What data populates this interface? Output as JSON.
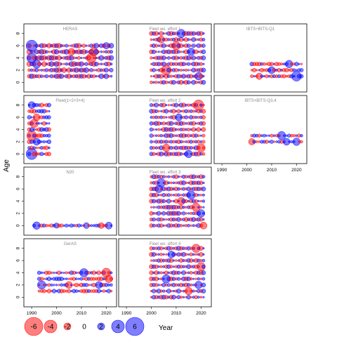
{
  "chart_data": {
    "type": "scatter",
    "title": "",
    "xlabel": "Year",
    "ylabel": "Age",
    "xlim": [
      1988,
      2023
    ],
    "ylim": [
      -1,
      9
    ],
    "x_ticks": [
      1990,
      2000,
      2010,
      2020
    ],
    "y_ticks": [
      0,
      2,
      4,
      6,
      8
    ],
    "colors": {
      "positive": "#0000FF",
      "negative": "#FF0000"
    },
    "legend": {
      "placement": "bottom-left",
      "entries": [
        {
          "label": "-6",
          "value": -6
        },
        {
          "label": "-4",
          "value": -4
        },
        {
          "label": "-2",
          "value": -2
        },
        {
          "label": "0",
          "value": 0
        },
        {
          "label": "2",
          "value": 2
        },
        {
          "label": "4",
          "value": 4
        },
        {
          "label": "6",
          "value": 6
        }
      ]
    },
    "panels": [
      {
        "title": "HERAS",
        "years": [
          1989,
          2022
        ],
        "ages": [
          1,
          6
        ],
        "pattern": "alt",
        "amp": 1.9,
        "strength": 0.6,
        "big": [
          [
            1990,
            6,
            3.5
          ],
          [
            1990,
            4,
            3.0
          ],
          [
            1992,
            3,
            2.5
          ],
          [
            2014,
            4,
            -3.0
          ],
          [
            2015,
            5,
            -2.5
          ],
          [
            2020,
            6,
            1.8
          ],
          [
            2006,
            5,
            -2.0
          ]
        ]
      },
      {
        "title": "Fleet wo. effort 1",
        "years": [
          2000,
          2021
        ],
        "ages": [
          0,
          8
        ],
        "pattern": "alt",
        "amp": 1.5,
        "strength": 0.6,
        "big": [
          [
            2006,
            2,
            -3.0
          ],
          [
            2012,
            8,
            2.5
          ],
          [
            2016,
            5,
            2.2
          ],
          [
            2019,
            1,
            2.2
          ],
          [
            2010,
            6,
            -2.5
          ],
          [
            2004,
            7,
            -2.0
          ]
        ]
      },
      {
        "title": "IBTS+BITS-Q1",
        "years": [
          2002,
          2022
        ],
        "ages": [
          1,
          3
        ],
        "pattern": "mixed",
        "amp": 1.5,
        "strength": 0.5,
        "big": [
          [
            2020,
            1,
            3.0
          ],
          [
            2017,
            3,
            2.2
          ],
          [
            2010,
            2,
            2.0
          ],
          [
            2005,
            1,
            -1.8
          ]
        ]
      },
      {
        "title": "Fleet(1+2+3+4)",
        "years": [
          1989,
          1997
        ],
        "ages": [
          0,
          8
        ],
        "pattern": "mixed",
        "amp": 1.7,
        "strength": 0.5,
        "big": [
          [
            1990,
            0,
            3.5
          ],
          [
            1990,
            3,
            -3.0
          ],
          [
            1991,
            5,
            -2.5
          ],
          [
            1990,
            8,
            2.0
          ],
          [
            1992,
            6,
            -2.0
          ],
          [
            1992,
            2,
            2.0
          ]
        ]
      },
      {
        "title": "Fleet wo. effort 2",
        "years": [
          2000,
          2021
        ],
        "ages": [
          0,
          8
        ],
        "pattern": "alt",
        "amp": 1.5,
        "strength": 0.6,
        "big": [
          [
            2019,
            8,
            -3.2
          ],
          [
            2020,
            1,
            -2.5
          ],
          [
            2011,
            6,
            2.0
          ],
          [
            2006,
            1,
            -2.2
          ],
          [
            2015,
            0,
            2.2
          ]
        ]
      },
      {
        "title": "IBTS+BITS-Q3,4",
        "years": [
          2002,
          2022
        ],
        "ages": [
          2,
          3
        ],
        "pattern": "mixed",
        "amp": 1.3,
        "strength": 0.5,
        "big": [
          [
            2014,
            3,
            2.5
          ],
          [
            2020,
            2,
            2.2
          ],
          [
            2002,
            2,
            -1.8
          ],
          [
            2016,
            2,
            2.0
          ]
        ]
      },
      {
        "title": "N20",
        "years": [
          1991,
          2022
        ],
        "ages": [
          0,
          0
        ],
        "pattern": "mixed",
        "amp": 1.3,
        "strength": 0.5,
        "big": [
          [
            1992,
            0,
            2.2
          ],
          [
            2021,
            0,
            2.0
          ],
          [
            2012,
            0,
            1.6
          ],
          [
            2018,
            0,
            -1.6
          ],
          [
            2000,
            0,
            1.4
          ]
        ]
      },
      {
        "title": "Fleet wo. effort 3",
        "years": [
          2000,
          2021
        ],
        "ages": [
          0,
          8
        ],
        "pattern": "alt",
        "amp": 1.5,
        "strength": 0.6,
        "big": [
          [
            2004,
            7,
            2.5
          ],
          [
            2016,
            5,
            2.5
          ],
          [
            2018,
            3,
            -2.5
          ],
          [
            2021,
            0,
            -2.0
          ],
          [
            2003,
            6,
            2.2
          ],
          [
            2012,
            4,
            -2.2
          ],
          [
            2020,
            2,
            2.2
          ]
        ]
      },
      {
        "title": "GerAS",
        "years": [
          1993,
          2022
        ],
        "ages": [
          1,
          4
        ],
        "pattern": "mixed",
        "amp": 1.6,
        "strength": 0.5,
        "big": [
          [
            1994,
            2,
            2.5
          ],
          [
            2011,
            4,
            2.5
          ],
          [
            2020,
            4,
            -2.8
          ],
          [
            2021,
            3,
            -2.2
          ],
          [
            2017,
            2,
            2.0
          ],
          [
            2005,
            2,
            -2.0
          ]
        ]
      },
      {
        "title": "Fleet wo. effort 4",
        "years": [
          2000,
          2021
        ],
        "ages": [
          0,
          8
        ],
        "pattern": "alt",
        "amp": 1.5,
        "strength": 0.6,
        "big": [
          [
            2018,
            8,
            -2.5
          ],
          [
            2020,
            5,
            -2.5
          ],
          [
            2006,
            3,
            2.5
          ],
          [
            2019,
            2,
            2.2
          ],
          [
            2015,
            1,
            -2.2
          ],
          [
            2008,
            7,
            2.0
          ]
        ]
      }
    ]
  }
}
